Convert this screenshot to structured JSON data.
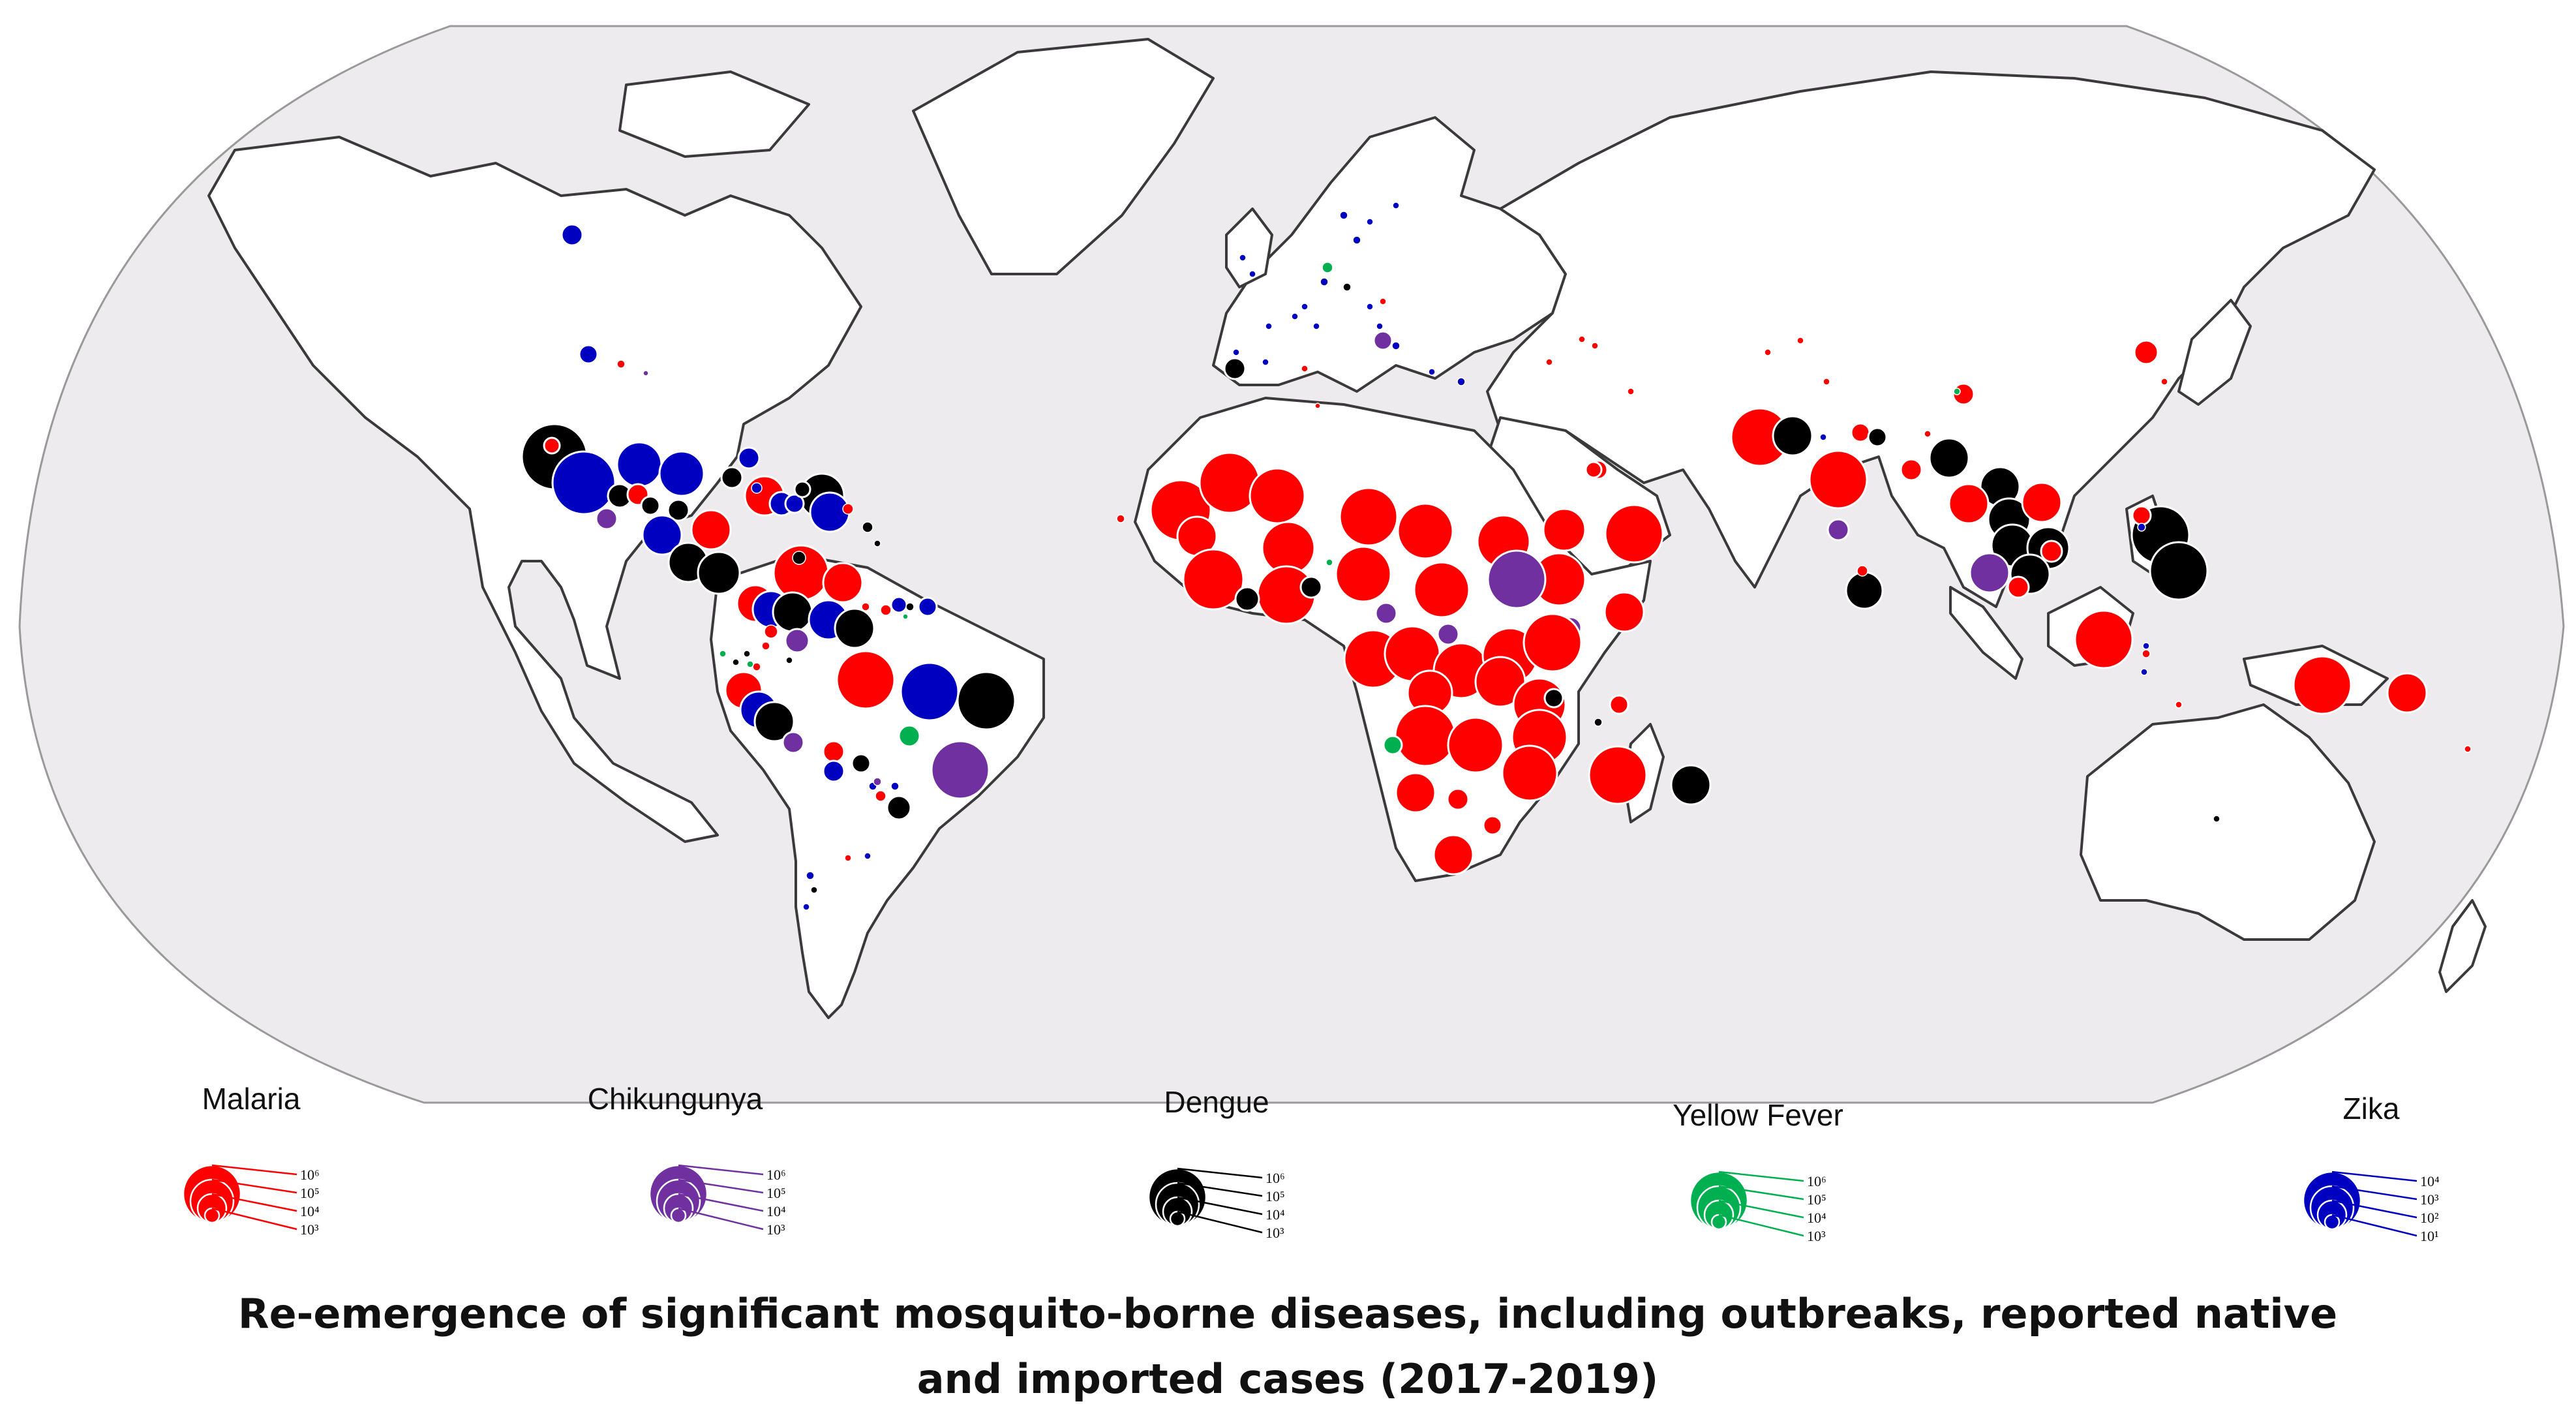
{
  "caption": {
    "line1": "Re-emergence of significant mosquito-borne diseases, including outbreaks, reported native",
    "line2": "and imported cases (2017-2019)"
  },
  "colors": {
    "malaria": "#ff0000",
    "chikungunya": "#7030a0",
    "dengue": "#000000",
    "yellow_fever": "#00b050",
    "zika": "#0000c0",
    "ocean": "#edebed",
    "land": "#ffffff"
  },
  "legend": [
    {
      "key": "malaria",
      "title": "Malaria",
      "color": "#ff0000",
      "ticks": [
        "10⁶",
        "10⁵",
        "10⁴",
        "10³"
      ]
    },
    {
      "key": "chikungunya",
      "title": "Chikungunya",
      "color": "#7030a0",
      "ticks": [
        "10⁶",
        "10⁵",
        "10⁴",
        "10³"
      ]
    },
    {
      "key": "dengue",
      "title": "Dengue",
      "color": "#000000",
      "ticks": [
        "10⁶",
        "10⁵",
        "10⁴",
        "10³"
      ]
    },
    {
      "key": "yellow_fever",
      "title": "Yellow Fever",
      "color": "#00b050",
      "ticks": [
        "10⁶",
        "10⁵",
        "10⁴",
        "10³"
      ]
    },
    {
      "key": "zika",
      "title": "Zika",
      "color": "#0000c0",
      "ticks": [
        "10⁴",
        "10³",
        "10²",
        "10¹"
      ]
    }
  ]
}
